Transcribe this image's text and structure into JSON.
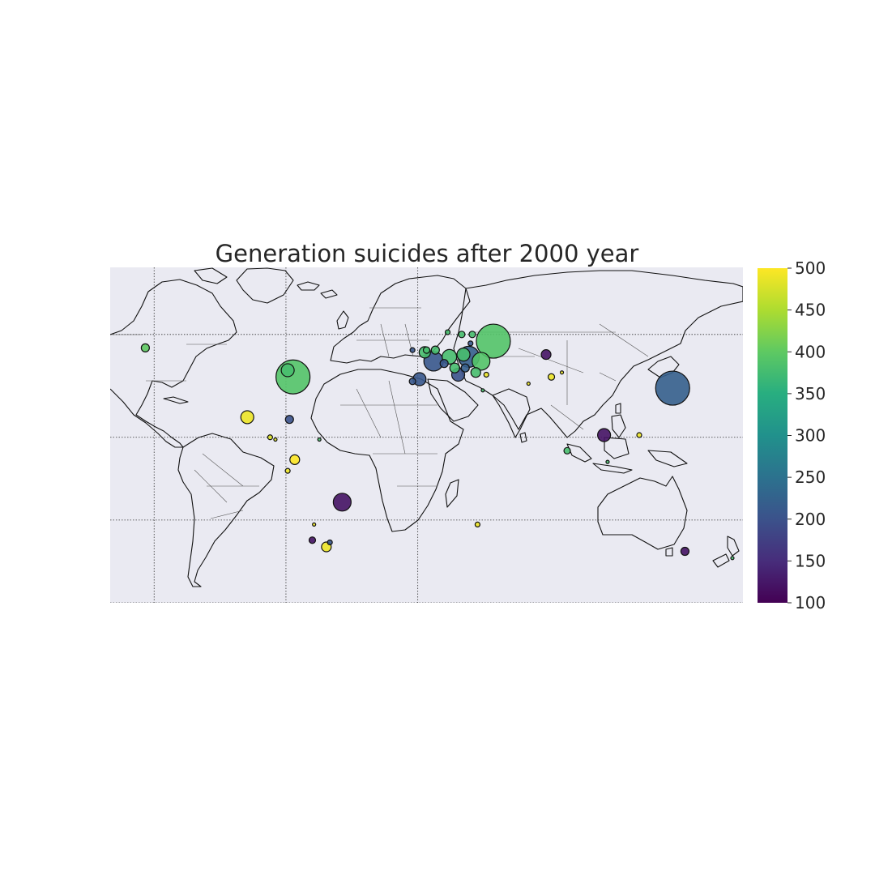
{
  "chart_data": {
    "type": "map-bubble",
    "title": "Generation suicides after 2000 year",
    "projection": "equirectangular",
    "lon_range": [
      -180,
      180
    ],
    "lat_range": [
      -90,
      90
    ],
    "visible_lat_range": [
      -60,
      90
    ],
    "meridians": [
      -155,
      -80,
      -5
    ],
    "parallels": [
      -60,
      -23,
      14,
      60
    ],
    "colorbar": {
      "colormap": "viridis",
      "range": [
        100,
        500
      ],
      "ticks": [
        "100",
        "150",
        "200",
        "250",
        "300",
        "350",
        "400",
        "450",
        "500"
      ]
    },
    "points": [
      {
        "lon": -160,
        "lat": 54,
        "value": 400,
        "size": 5
      },
      {
        "lon": -76,
        "lat": 41,
        "value": 390,
        "size": 21
      },
      {
        "lon": -79,
        "lat": 44,
        "value": 380,
        "size": 8
      },
      {
        "lon": -102,
        "lat": 23,
        "value": 490,
        "size": 8
      },
      {
        "lon": -78,
        "lat": 22,
        "value": 200,
        "size": 5
      },
      {
        "lon": -61,
        "lat": 13,
        "value": 380,
        "size": 2
      },
      {
        "lon": -89,
        "lat": 14,
        "value": 480,
        "size": 3
      },
      {
        "lon": -86,
        "lat": 13,
        "value": 480,
        "size": 2
      },
      {
        "lon": -75,
        "lat": 4,
        "value": 500,
        "size": 6
      },
      {
        "lon": -79,
        "lat": -1,
        "value": 490,
        "size": 3
      },
      {
        "lon": -48,
        "lat": -15,
        "value": 120,
        "size": 11
      },
      {
        "lon": -65,
        "lat": -32,
        "value": 120,
        "size": 4
      },
      {
        "lon": -64,
        "lat": -25,
        "value": 490,
        "size": 2
      },
      {
        "lon": -57,
        "lat": -35,
        "value": 490,
        "size": 6
      },
      {
        "lon": -55,
        "lat": -33,
        "value": 210,
        "size": 3
      },
      {
        "lon": 38,
        "lat": 57,
        "value": 390,
        "size": 21
      },
      {
        "lon": 24,
        "lat": 50,
        "value": 220,
        "size": 13
      },
      {
        "lon": 4,
        "lat": 48,
        "value": 210,
        "size": 12
      },
      {
        "lon": 31,
        "lat": 48,
        "value": 390,
        "size": 11
      },
      {
        "lon": 13,
        "lat": 50,
        "value": 380,
        "size": 9
      },
      {
        "lon": -1,
        "lat": 52,
        "value": 380,
        "size": 7
      },
      {
        "lon": 18,
        "lat": 42,
        "value": 200,
        "size": 8
      },
      {
        "lon": -4,
        "lat": 40,
        "value": 210,
        "size": 8
      },
      {
        "lon": -8,
        "lat": 39,
        "value": 210,
        "size": 4
      },
      {
        "lon": 28,
        "lat": 43,
        "value": 380,
        "size": 6
      },
      {
        "lon": 21,
        "lat": 51,
        "value": 380,
        "size": 8
      },
      {
        "lon": 22,
        "lat": 45,
        "value": 220,
        "size": 5
      },
      {
        "lon": 16,
        "lat": 45,
        "value": 380,
        "size": 6
      },
      {
        "lon": 10,
        "lat": 47,
        "value": 210,
        "size": 5
      },
      {
        "lon": 5,
        "lat": 53,
        "value": 380,
        "size": 5
      },
      {
        "lon": 0,
        "lat": 53,
        "value": 380,
        "size": 4
      },
      {
        "lon": -8,
        "lat": 53,
        "value": 210,
        "size": 3
      },
      {
        "lon": 20,
        "lat": 60,
        "value": 380,
        "size": 4
      },
      {
        "lon": 12,
        "lat": 61,
        "value": 380,
        "size": 3
      },
      {
        "lon": 26,
        "lat": 60,
        "value": 380,
        "size": 4
      },
      {
        "lon": 25,
        "lat": 56,
        "value": 210,
        "size": 3
      },
      {
        "lon": 34,
        "lat": 42,
        "value": 490,
        "size": 3
      },
      {
        "lon": 32,
        "lat": 35,
        "value": 380,
        "size": 2
      },
      {
        "lon": 68,
        "lat": 51,
        "value": 120,
        "size": 6
      },
      {
        "lon": 71,
        "lat": 41,
        "value": 490,
        "size": 4
      },
      {
        "lon": 77,
        "lat": 43,
        "value": 490,
        "size": 2
      },
      {
        "lon": 58,
        "lat": 38,
        "value": 490,
        "size": 2
      },
      {
        "lon": 140,
        "lat": 36,
        "value": 220,
        "size": 21
      },
      {
        "lon": 101,
        "lat": 15,
        "value": 120,
        "size": 8
      },
      {
        "lon": 80,
        "lat": 8,
        "value": 380,
        "size": 4
      },
      {
        "lon": 121,
        "lat": 15,
        "value": 490,
        "size": 3
      },
      {
        "lon": 103,
        "lat": 3,
        "value": 380,
        "size": 2
      },
      {
        "lon": 147,
        "lat": -37,
        "value": 120,
        "size": 5
      },
      {
        "lon": 174,
        "lat": -40,
        "value": 380,
        "size": 2
      },
      {
        "lon": 29,
        "lat": -25,
        "value": 490,
        "size": 3
      }
    ]
  }
}
